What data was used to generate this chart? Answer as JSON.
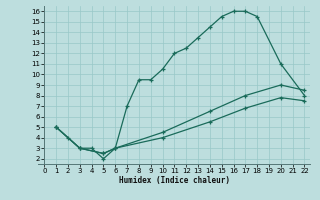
{
  "xlabel": "Humidex (Indice chaleur)",
  "bg_color": "#bddede",
  "grid_color": "#99c8c8",
  "line_color": "#1a6b5a",
  "xlim": [
    -0.5,
    22.5
  ],
  "ylim": [
    1.5,
    16.5
  ],
  "xticks": [
    0,
    1,
    2,
    3,
    4,
    5,
    6,
    7,
    8,
    9,
    10,
    11,
    12,
    13,
    14,
    15,
    16,
    17,
    18,
    19,
    20,
    21,
    22
  ],
  "yticks": [
    2,
    3,
    4,
    5,
    6,
    7,
    8,
    9,
    10,
    11,
    12,
    13,
    14,
    15,
    16
  ],
  "line1_x": [
    1,
    2,
    3,
    4,
    5,
    6,
    7,
    8,
    9,
    10,
    11,
    12,
    13,
    14,
    15,
    16,
    17,
    18,
    20,
    22
  ],
  "line1_y": [
    5,
    4,
    3,
    3,
    2,
    3,
    7,
    9.5,
    9.5,
    10.5,
    12,
    12.5,
    13.5,
    14.5,
    15.5,
    16,
    16,
    15.5,
    11,
    8
  ],
  "line2_x": [
    1,
    3,
    5,
    6,
    10,
    14,
    17,
    20,
    22
  ],
  "line2_y": [
    5,
    3,
    2.5,
    3,
    4.5,
    6.5,
    8,
    9,
    8.5
  ],
  "line3_x": [
    1,
    3,
    5,
    6,
    10,
    14,
    17,
    20,
    22
  ],
  "line3_y": [
    5,
    3,
    2.5,
    3,
    4.0,
    5.5,
    6.8,
    7.8,
    7.5
  ]
}
